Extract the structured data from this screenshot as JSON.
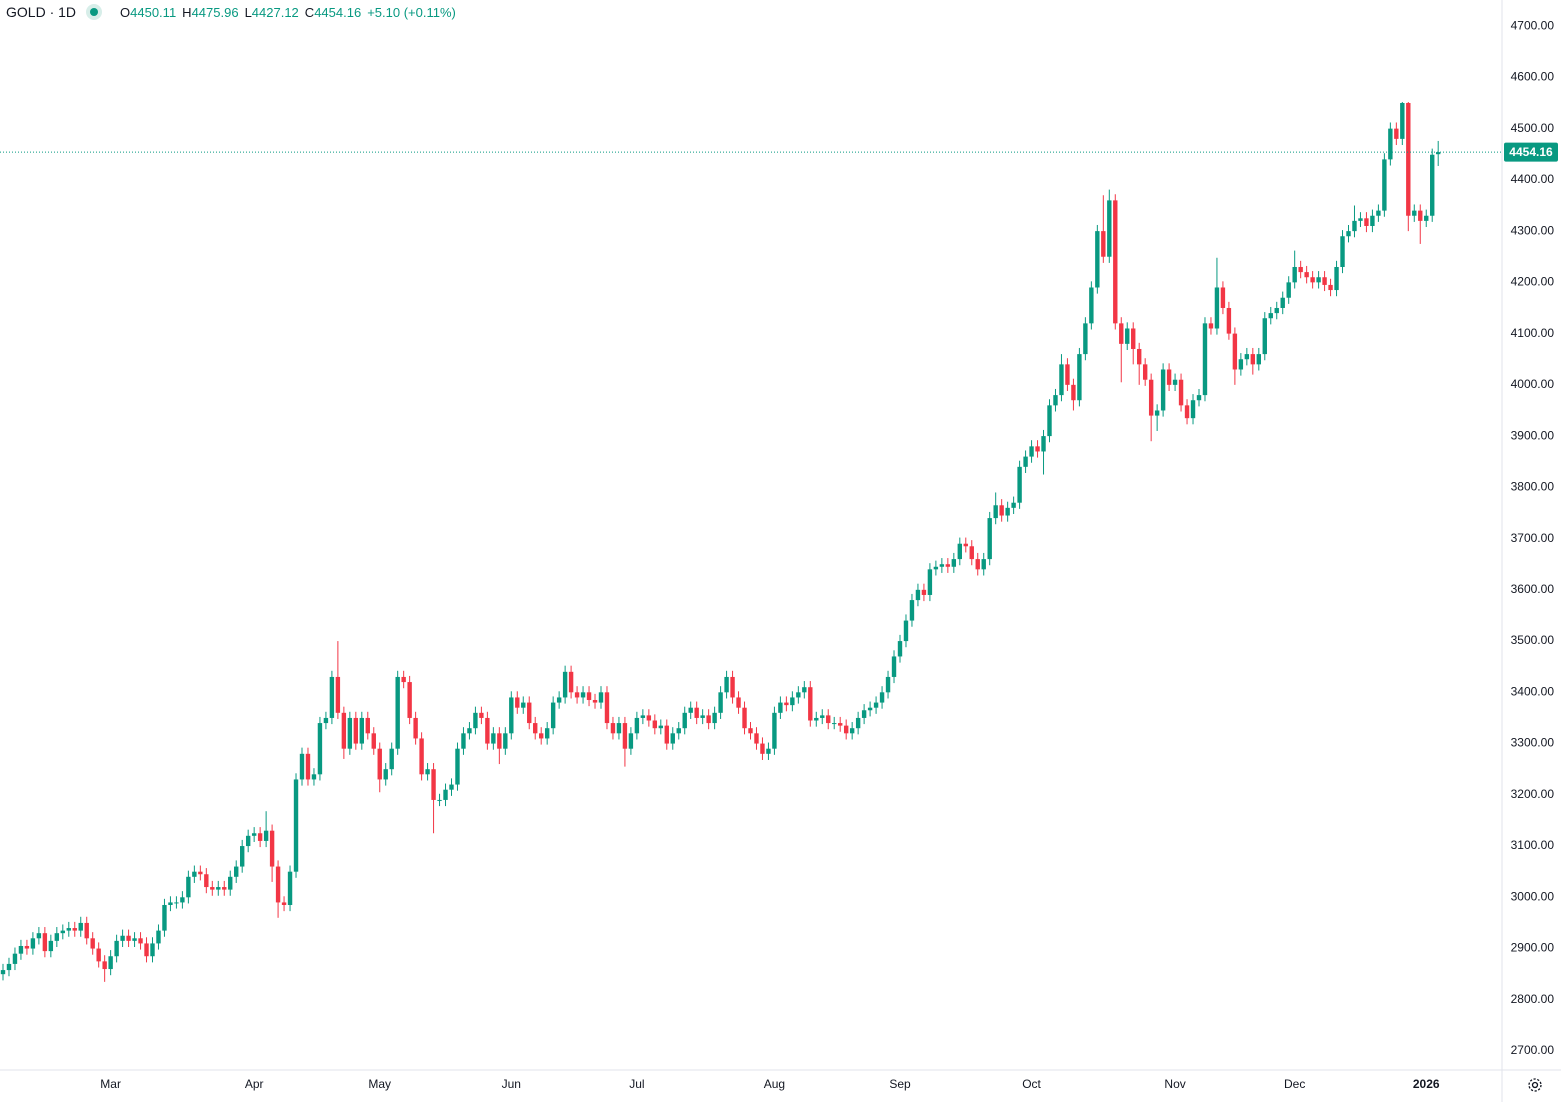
{
  "chart_data": {
    "type": "candlestick",
    "title": "GOLD · 1D",
    "ohlc_prefixes": [
      "O",
      "H",
      "L",
      "C"
    ],
    "change_label": "+5.10 (+0.11%)",
    "up_color": "#089981",
    "down_color": "#f23645",
    "ylim": [
      2663,
      4751
    ],
    "yticks": [
      {
        "value": 2700,
        "label": "2700.00"
      },
      {
        "value": 2800,
        "label": "2800.00"
      },
      {
        "value": 2900,
        "label": "2900.00"
      },
      {
        "value": 3000,
        "label": "3000.00"
      },
      {
        "value": 3100,
        "label": "3100.00"
      },
      {
        "value": 3200,
        "label": "3200.00"
      },
      {
        "value": 3300,
        "label": "3300.00"
      },
      {
        "value": 3400,
        "label": "3400.00"
      },
      {
        "value": 3500,
        "label": "3500.00"
      },
      {
        "value": 3600,
        "label": "3600.00"
      },
      {
        "value": 3700,
        "label": "3700.00"
      },
      {
        "value": 3800,
        "label": "3800.00"
      },
      {
        "value": 3900,
        "label": "3900.00"
      },
      {
        "value": 4000,
        "label": "4000.00"
      },
      {
        "value": 4100,
        "label": "4100.00"
      },
      {
        "value": 4200,
        "label": "4200.00"
      },
      {
        "value": 4300,
        "label": "4300.00"
      },
      {
        "value": 4400,
        "label": "4400.00"
      },
      {
        "value": 4500,
        "label": "4500.00"
      },
      {
        "value": 4600,
        "label": "4600.00"
      },
      {
        "value": 4700,
        "label": "4700.00"
      }
    ],
    "grid": false,
    "categories": [
      null,
      null,
      null,
      null,
      null,
      null,
      null,
      null,
      null,
      null,
      null,
      null,
      null,
      null,
      null,
      null,
      null,
      null,
      "Mar",
      null,
      null,
      null,
      null,
      null,
      null,
      null,
      null,
      null,
      null,
      null,
      null,
      null,
      null,
      null,
      null,
      null,
      null,
      null,
      null,
      null,
      null,
      null,
      "Apr",
      null,
      null,
      null,
      null,
      null,
      null,
      null,
      null,
      null,
      null,
      null,
      null,
      null,
      null,
      null,
      null,
      null,
      null,
      null,
      null,
      "May",
      null,
      null,
      null,
      null,
      null,
      null,
      null,
      null,
      null,
      null,
      null,
      null,
      null,
      null,
      null,
      null,
      null,
      null,
      null,
      null,
      null,
      "Jun",
      null,
      null,
      null,
      null,
      null,
      null,
      null,
      null,
      null,
      null,
      null,
      null,
      null,
      null,
      null,
      null,
      null,
      null,
      null,
      null,
      "Jul",
      null,
      null,
      null,
      null,
      null,
      null,
      null,
      null,
      null,
      null,
      null,
      null,
      null,
      null,
      null,
      null,
      null,
      null,
      null,
      null,
      null,
      null,
      "Aug",
      null,
      null,
      null,
      null,
      null,
      null,
      null,
      null,
      null,
      null,
      null,
      null,
      null,
      null,
      null,
      null,
      null,
      null,
      null,
      null,
      "Sep",
      null,
      null,
      null,
      null,
      null,
      null,
      null,
      null,
      null,
      null,
      null,
      null,
      null,
      null,
      null,
      null,
      null,
      null,
      null,
      null,
      null,
      "Oct",
      null,
      null,
      null,
      null,
      null,
      null,
      null,
      null,
      null,
      null,
      null,
      null,
      null,
      null,
      null,
      null,
      null,
      null,
      null,
      null,
      null,
      null,
      null,
      "Nov",
      null,
      null,
      null,
      null,
      null,
      null,
      null,
      null,
      null,
      null,
      null,
      null,
      null,
      null,
      null,
      null,
      null,
      null,
      null,
      "Dec",
      null,
      null,
      null,
      null,
      null,
      null,
      null,
      null,
      null,
      null,
      null,
      null,
      null,
      null,
      null,
      null,
      null,
      null,
      null,
      null,
      null,
      "2026",
      null,
      null
    ],
    "open": [
      2850,
      2858,
      2870,
      2890,
      2905,
      2900,
      2920,
      2930,
      2895,
      2915,
      2930,
      2935,
      2940,
      2935,
      2950,
      2920,
      2900,
      2875,
      2860,
      2885,
      2915,
      2925,
      2915,
      2920,
      2910,
      2885,
      2910,
      2935,
      2985,
      2990,
      2990,
      3000,
      3040,
      3050,
      3045,
      3020,
      3015,
      3020,
      3015,
      3040,
      3060,
      3100,
      3120,
      3125,
      3110,
      3130,
      3060,
      2990,
      2985,
      3050,
      3230,
      3280,
      3230,
      3240,
      3340,
      3350,
      3430,
      3360,
      3290,
      3350,
      3300,
      3350,
      3320,
      3290,
      3230,
      3250,
      3290,
      3430,
      3420,
      3350,
      3310,
      3240,
      3250,
      3190,
      3190,
      3210,
      3220,
      3290,
      3320,
      3330,
      3360,
      3350,
      3300,
      3320,
      3290,
      3320,
      3390,
      3370,
      3380,
      3340,
      3320,
      3310,
      3330,
      3380,
      3390,
      3440,
      3400,
      3390,
      3400,
      3385,
      3380,
      3400,
      3340,
      3320,
      3340,
      3290,
      3320,
      3350,
      3355,
      3345,
      3330,
      3335,
      3300,
      3320,
      3330,
      3360,
      3370,
      3350,
      3355,
      3340,
      3360,
      3400,
      3430,
      3390,
      3370,
      3330,
      3320,
      3300,
      3280,
      3290,
      3360,
      3380,
      3375,
      3390,
      3400,
      3410,
      3345,
      3350,
      3355,
      3340,
      3340,
      3335,
      3320,
      3330,
      3350,
      3365,
      3370,
      3380,
      3400,
      3430,
      3470,
      3500,
      3540,
      3580,
      3600,
      3590,
      3640,
      3645,
      3650,
      3645,
      3660,
      3690,
      3685,
      3660,
      3640,
      3660,
      3740,
      3765,
      3745,
      3760,
      3770,
      3840,
      3860,
      3880,
      3870,
      3900,
      3960,
      3980,
      4040,
      4000,
      3970,
      4060,
      4120,
      4190,
      4300,
      4250,
      4360,
      4120,
      4080,
      4110,
      4070,
      4040,
      4010,
      3940,
      3950,
      4030,
      4000,
      4010,
      3960,
      3935,
      3970,
      3980,
      4120,
      4110,
      4190,
      4150,
      4100,
      4030,
      4050,
      4060,
      4040,
      4060,
      4130,
      4140,
      4150,
      4170,
      4200,
      4230,
      4220,
      4210,
      4200,
      4210,
      4195,
      4185,
      4230,
      4290,
      4300,
      4320,
      4325,
      4310,
      4330,
      4340,
      4440,
      4500,
      4480,
      4550,
      4330,
      4340,
      4320,
      4330,
      4450.11
    ],
    "high": [
      2870,
      2882,
      2902,
      2917,
      2917,
      2932,
      2942,
      2942,
      2927,
      2942,
      2947,
      2952,
      2952,
      2962,
      2962,
      2932,
      2912,
      2887,
      2897,
      2927,
      2937,
      2937,
      2932,
      2932,
      2922,
      2922,
      2947,
      2997,
      3002,
      3002,
      3012,
      3052,
      3062,
      3062,
      3057,
      3032,
      3032,
      3032,
      3052,
      3072,
      3112,
      3132,
      3137,
      3137,
      3168,
      3142,
      3072,
      3002,
      3062,
      3242,
      3292,
      3292,
      3252,
      3352,
      3362,
      3442,
      3500,
      3372,
      3362,
      3362,
      3362,
      3362,
      3332,
      3302,
      3262,
      3302,
      3442,
      3442,
      3432,
      3362,
      3322,
      3262,
      3262,
      3202,
      3222,
      3232,
      3302,
      3332,
      3342,
      3372,
      3372,
      3362,
      3332,
      3332,
      3332,
      3402,
      3402,
      3392,
      3392,
      3352,
      3332,
      3342,
      3392,
      3402,
      3452,
      3452,
      3412,
      3412,
      3412,
      3397,
      3412,
      3412,
      3352,
      3352,
      3352,
      3332,
      3362,
      3367,
      3367,
      3357,
      3347,
      3347,
      3332,
      3342,
      3372,
      3382,
      3382,
      3367,
      3367,
      3372,
      3412,
      3442,
      3442,
      3402,
      3382,
      3342,
      3332,
      3312,
      3302,
      3372,
      3392,
      3392,
      3402,
      3412,
      3422,
      3422,
      3362,
      3367,
      3367,
      3352,
      3352,
      3347,
      3342,
      3362,
      3377,
      3382,
      3392,
      3412,
      3442,
      3482,
      3512,
      3552,
      3592,
      3612,
      3612,
      3652,
      3657,
      3662,
      3662,
      3672,
      3702,
      3702,
      3697,
      3672,
      3672,
      3752,
      3790,
      3777,
      3772,
      3782,
      3852,
      3872,
      3892,
      3892,
      3912,
      3972,
      3992,
      4060,
      4052,
      4012,
      4072,
      4132,
      4202,
      4312,
      4370,
      4381,
      4372,
      4132,
      4122,
      4122,
      4082,
      4052,
      4022,
      3962,
      4042,
      4042,
      4022,
      4022,
      3972,
      3982,
      3992,
      4132,
      4132,
      4248,
      4202,
      4162,
      4112,
      4062,
      4072,
      4072,
      4072,
      4142,
      4152,
      4162,
      4182,
      4212,
      4262,
      4242,
      4232,
      4222,
      4222,
      4222,
      4207,
      4242,
      4302,
      4312,
      4350,
      4337,
      4337,
      4342,
      4352,
      4452,
      4512,
      4512,
      4552,
      4552,
      4352,
      4352,
      4342,
      4461,
      4475.96
    ],
    "low": [
      2838,
      2846,
      2858,
      2878,
      2888,
      2888,
      2908,
      2883,
      2883,
      2903,
      2918,
      2923,
      2923,
      2923,
      2908,
      2888,
      2863,
      2835,
      2848,
      2873,
      2903,
      2903,
      2903,
      2898,
      2873,
      2873,
      2898,
      2923,
      2973,
      2978,
      2978,
      2988,
      3028,
      3033,
      3008,
      3003,
      3003,
      3003,
      3003,
      3028,
      3048,
      3088,
      3108,
      3098,
      3098,
      3030,
      2960,
      2973,
      2973,
      3038,
      3218,
      3218,
      3218,
      3228,
      3328,
      3338,
      3348,
      3270,
      3278,
      3288,
      3288,
      3308,
      3278,
      3205,
      3218,
      3238,
      3278,
      3408,
      3338,
      3298,
      3228,
      3228,
      3125,
      3178,
      3178,
      3198,
      3208,
      3278,
      3308,
      3318,
      3338,
      3288,
      3288,
      3260,
      3278,
      3308,
      3358,
      3358,
      3328,
      3308,
      3298,
      3298,
      3318,
      3368,
      3378,
      3388,
      3378,
      3378,
      3373,
      3368,
      3368,
      3328,
      3308,
      3308,
      3255,
      3278,
      3308,
      3338,
      3333,
      3318,
      3318,
      3288,
      3288,
      3308,
      3318,
      3348,
      3338,
      3338,
      3328,
      3328,
      3348,
      3388,
      3378,
      3358,
      3318,
      3308,
      3288,
      3268,
      3268,
      3278,
      3348,
      3363,
      3363,
      3378,
      3388,
      3333,
      3333,
      3338,
      3328,
      3328,
      3323,
      3308,
      3308,
      3318,
      3338,
      3353,
      3358,
      3368,
      3388,
      3418,
      3458,
      3488,
      3528,
      3568,
      3578,
      3578,
      3628,
      3633,
      3633,
      3633,
      3648,
      3673,
      3648,
      3628,
      3628,
      3648,
      3728,
      3733,
      3733,
      3748,
      3758,
      3828,
      3848,
      3858,
      3825,
      3888,
      3948,
      3968,
      3988,
      3950,
      3958,
      4048,
      4108,
      4178,
      4238,
      4238,
      4108,
      4005,
      4068,
      4040,
      4000,
      3998,
      3890,
      3910,
      3938,
      3988,
      3988,
      3948,
      3923,
      3923,
      3958,
      3968,
      4098,
      4098,
      4138,
      4088,
      4000,
      4018,
      4038,
      4020,
      4028,
      4048,
      4118,
      4128,
      4138,
      4158,
      4188,
      4208,
      4198,
      4188,
      4188,
      4183,
      4173,
      4173,
      4218,
      4278,
      4288,
      4308,
      4298,
      4298,
      4318,
      4328,
      4428,
      4468,
      4468,
      4300,
      4318,
      4275,
      4308,
      4318,
      4427.12
    ],
    "close": [
      2858,
      2870,
      2890,
      2905,
      2900,
      2920,
      2930,
      2895,
      2915,
      2930,
      2935,
      2940,
      2935,
      2950,
      2920,
      2900,
      2875,
      2860,
      2885,
      2915,
      2925,
      2915,
      2920,
      2910,
      2885,
      2910,
      2935,
      2985,
      2990,
      2990,
      3000,
      3040,
      3050,
      3045,
      3020,
      3015,
      3020,
      3015,
      3040,
      3060,
      3100,
      3120,
      3125,
      3110,
      3130,
      3060,
      2990,
      2985,
      3050,
      3230,
      3280,
      3230,
      3240,
      3340,
      3350,
      3430,
      3360,
      3290,
      3350,
      3300,
      3350,
      3320,
      3290,
      3230,
      3250,
      3290,
      3430,
      3420,
      3350,
      3310,
      3240,
      3250,
      3190,
      3190,
      3210,
      3220,
      3290,
      3320,
      3330,
      3360,
      3350,
      3300,
      3320,
      3290,
      3320,
      3390,
      3370,
      3380,
      3340,
      3320,
      3310,
      3330,
      3380,
      3390,
      3440,
      3400,
      3390,
      3400,
      3385,
      3380,
      3400,
      3340,
      3320,
      3340,
      3290,
      3320,
      3350,
      3355,
      3345,
      3330,
      3335,
      3300,
      3320,
      3330,
      3360,
      3370,
      3350,
      3355,
      3340,
      3360,
      3400,
      3430,
      3390,
      3370,
      3330,
      3320,
      3300,
      3280,
      3290,
      3360,
      3380,
      3375,
      3390,
      3400,
      3410,
      3345,
      3350,
      3355,
      3340,
      3340,
      3335,
      3320,
      3330,
      3350,
      3365,
      3370,
      3380,
      3400,
      3430,
      3470,
      3500,
      3540,
      3580,
      3600,
      3590,
      3640,
      3645,
      3650,
      3645,
      3660,
      3690,
      3685,
      3660,
      3640,
      3660,
      3740,
      3765,
      3745,
      3760,
      3770,
      3840,
      3860,
      3880,
      3870,
      3900,
      3960,
      3980,
      4040,
      4000,
      3970,
      4060,
      4120,
      4190,
      4300,
      4250,
      4360,
      4120,
      4080,
      4110,
      4070,
      4040,
      4010,
      3940,
      3950,
      4030,
      4000,
      4010,
      3960,
      3935,
      3970,
      3980,
      4120,
      4110,
      4190,
      4150,
      4100,
      4030,
      4050,
      4060,
      4040,
      4060,
      4130,
      4140,
      4150,
      4170,
      4200,
      4230,
      4220,
      4210,
      4200,
      4210,
      4195,
      4185,
      4230,
      4290,
      4300,
      4320,
      4325,
      4310,
      4330,
      4340,
      4440,
      4500,
      4480,
      4550,
      4330,
      4340,
      4320,
      4330,
      4449.06,
      4454.16
    ]
  }
}
